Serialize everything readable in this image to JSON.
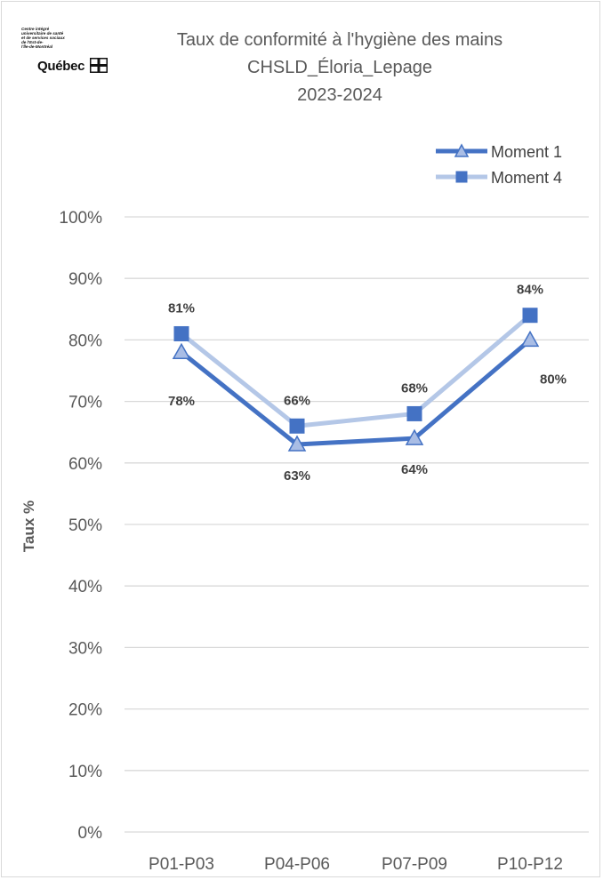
{
  "logo": {
    "lines": [
      "Centre intégré",
      "universitaire de santé",
      "et de services sociaux",
      "de l'Est-de-",
      "l'Île-de-Montréal"
    ],
    "wordmark": "Québec"
  },
  "titles": {
    "line1": "Taux de conformité à l'hygiène des mains",
    "line2": "CHSLD_Éloria_Lepage",
    "line3": "2023-2024"
  },
  "chart_data": {
    "type": "line",
    "categories": [
      "P01-P03",
      "P04-P06",
      "P07-P09",
      "P10-P12"
    ],
    "series": [
      {
        "name": "Moment 1",
        "values": [
          78,
          63,
          64,
          80
        ],
        "labels": [
          "78%",
          "63%",
          "64%",
          "80%"
        ],
        "color": "#4472c4",
        "marker": "triangle",
        "marker_fill": "#a9bde5"
      },
      {
        "name": "Moment 4",
        "values": [
          81,
          66,
          68,
          84
        ],
        "labels": [
          "81%",
          "66%",
          "68%",
          "84%"
        ],
        "color": "#b4c7e7",
        "marker": "square",
        "marker_fill": "#4472c4"
      }
    ],
    "ylabel": "Taux %",
    "xlabel": "",
    "ylim": [
      0,
      100
    ],
    "yticks": [
      "0%",
      "10%",
      "20%",
      "30%",
      "40%",
      "50%",
      "60%",
      "70%",
      "80%",
      "90%",
      "100%"
    ],
    "grid": true,
    "legend_position": "top-right"
  }
}
